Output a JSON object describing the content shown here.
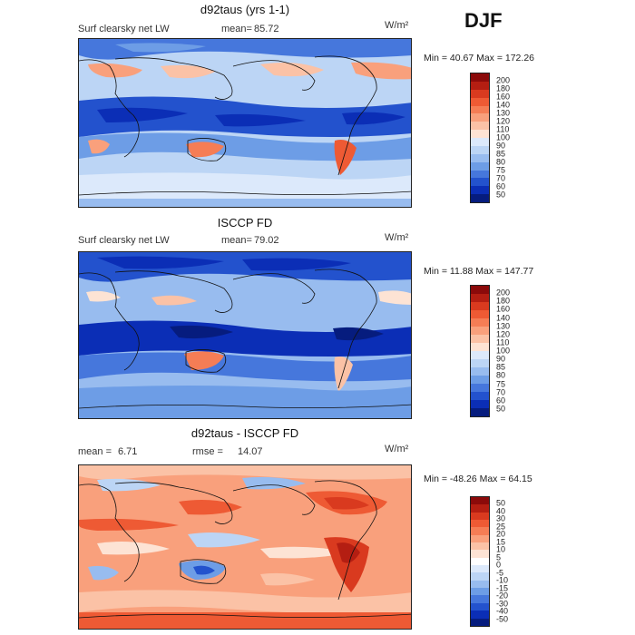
{
  "season": "DJF",
  "panels": [
    {
      "title": "d92taus (yrs 1-1)",
      "left_label": "Surf clearsky net LW",
      "stat1_label": "mean=",
      "stat1_value": "85.72",
      "stat2_label": "",
      "stat2_value": "",
      "units": "W/m²",
      "minmax": "Min =  40.67 Max = 172.26",
      "base_color": "#bcd5f5",
      "colorbar": {
        "labels": [
          "200",
          "180",
          "160",
          "140",
          "130",
          "120",
          "110",
          "100",
          "90",
          "85",
          "80",
          "75",
          "70",
          "60",
          "50"
        ],
        "colors": [
          "#8b0a0a",
          "#b41e12",
          "#d93a1f",
          "#ee5a34",
          "#f57d55",
          "#f9a07c",
          "#fbc2a6",
          "#fde3d4",
          "#dce9fb",
          "#bcd5f5",
          "#98bcef",
          "#6d9de6",
          "#4677dc",
          "#2352cd",
          "#0b2eb6",
          "#061c7e"
        ]
      }
    },
    {
      "title": "ISCCP FD",
      "left_label": "Surf clearsky net LW",
      "stat1_label": "mean=",
      "stat1_value": "79.02",
      "stat2_label": "",
      "stat2_value": "",
      "units": "W/m²",
      "minmax": "Min =  11.88 Max = 147.77",
      "base_color": "#98bcef",
      "colorbar": {
        "labels": [
          "200",
          "180",
          "160",
          "140",
          "130",
          "120",
          "110",
          "100",
          "90",
          "85",
          "80",
          "75",
          "70",
          "60",
          "50"
        ],
        "colors": [
          "#8b0a0a",
          "#b41e12",
          "#d93a1f",
          "#ee5a34",
          "#f57d55",
          "#f9a07c",
          "#fbc2a6",
          "#fde3d4",
          "#dce9fb",
          "#bcd5f5",
          "#98bcef",
          "#6d9de6",
          "#4677dc",
          "#2352cd",
          "#0b2eb6",
          "#061c7e"
        ]
      }
    },
    {
      "title": "d92taus - ISCCP FD",
      "left_label": "",
      "stat1_label": "mean =",
      "stat1_value": "6.71",
      "stat2_label": "rmse =",
      "stat2_value": "14.07",
      "units": "W/m²",
      "minmax": "Min = -48.26 Max =  64.15",
      "base_color": "#f9a07c",
      "colorbar": {
        "labels": [
          "50",
          "40",
          "30",
          "25",
          "20",
          "15",
          "10",
          "5",
          "0",
          "-5",
          "-10",
          "-15",
          "-20",
          "-30",
          "-40",
          "-50"
        ],
        "colors": [
          "#8b0a0a",
          "#b41e12",
          "#d93a1f",
          "#ee5a34",
          "#f57d55",
          "#f9a07c",
          "#fbc2a6",
          "#fde3d4",
          "#ffffff",
          "#dce9fb",
          "#bcd5f5",
          "#98bcef",
          "#6d9de6",
          "#4677dc",
          "#2352cd",
          "#0b2eb6",
          "#061c7e"
        ]
      }
    }
  ]
}
